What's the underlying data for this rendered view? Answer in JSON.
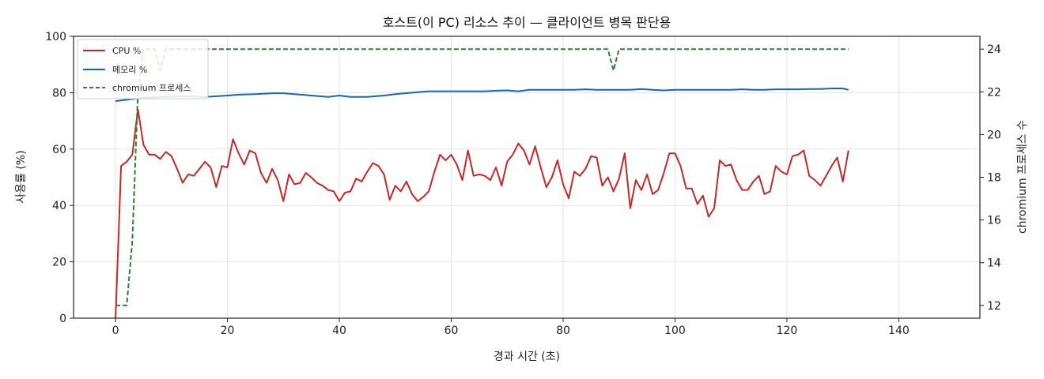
{
  "chart_data": {
    "type": "line",
    "title": "호스트(이 PC) 리소스 추이 — 클라이언트 병목 판단용",
    "xlabel": "경과 시간 (초)",
    "ylabel": "사용률 (%)",
    "y2label": "chromium 프로세스 수",
    "xlim": [
      -7.5,
      154.5
    ],
    "ylim": [
      0,
      100
    ],
    "y2lim": [
      11.4,
      24.6
    ],
    "xticks": [
      0,
      20,
      40,
      60,
      80,
      100,
      120,
      140
    ],
    "yticks": [
      0,
      20,
      40,
      60,
      80,
      100
    ],
    "y2ticks": [
      12,
      14,
      16,
      18,
      20,
      22,
      24
    ],
    "grid": true,
    "legend_position": "top-left",
    "colors": {
      "cpu": "#c62828",
      "memory": "#1565c0",
      "chromium": "#2e7d32"
    },
    "series": [
      {
        "name": "CPU %",
        "axis": "left",
        "style": "solid",
        "points": [
          [
            0,
            0
          ],
          [
            1,
            54
          ],
          [
            2,
            55.5
          ],
          [
            3,
            58
          ],
          [
            4,
            74
          ],
          [
            5,
            61.5
          ],
          [
            6,
            58
          ],
          [
            7,
            58
          ],
          [
            8,
            56.5
          ],
          [
            9,
            59
          ],
          [
            10,
            57.5
          ],
          [
            11,
            53
          ],
          [
            12,
            48
          ],
          [
            13,
            51
          ],
          [
            14,
            50.5
          ],
          [
            15,
            53
          ],
          [
            16,
            55.5
          ],
          [
            17,
            53.5
          ],
          [
            18,
            46.5
          ],
          [
            19,
            54
          ],
          [
            20,
            53.5
          ],
          [
            21,
            63.5
          ],
          [
            22,
            58.5
          ],
          [
            23,
            54.5
          ],
          [
            24,
            59.5
          ],
          [
            25,
            58.5
          ],
          [
            26,
            51.5
          ],
          [
            27,
            48
          ],
          [
            28,
            53
          ],
          [
            29,
            49
          ],
          [
            30,
            41.5
          ],
          [
            31,
            51
          ],
          [
            32,
            47.5
          ],
          [
            33,
            48
          ],
          [
            34,
            51.5
          ],
          [
            35,
            50
          ],
          [
            36,
            48
          ],
          [
            37,
            47
          ],
          [
            38,
            45.5
          ],
          [
            39,
            45
          ],
          [
            40,
            41.5
          ],
          [
            41,
            44.5
          ],
          [
            42,
            45
          ],
          [
            43,
            49.5
          ],
          [
            44,
            48.5
          ],
          [
            45,
            52
          ],
          [
            46,
            55
          ],
          [
            47,
            54
          ],
          [
            48,
            51
          ],
          [
            49,
            42
          ],
          [
            50,
            47
          ],
          [
            51,
            45
          ],
          [
            52,
            48.5
          ],
          [
            53,
            44
          ],
          [
            54,
            41.5
          ],
          [
            55,
            43
          ],
          [
            56,
            45
          ],
          [
            57,
            52
          ],
          [
            58,
            58
          ],
          [
            59,
            56
          ],
          [
            60,
            58
          ],
          [
            61,
            54.5
          ],
          [
            62,
            49
          ],
          [
            63,
            59.5
          ],
          [
            64,
            50.5
          ],
          [
            65,
            51
          ],
          [
            66,
            50.5
          ],
          [
            67,
            49
          ],
          [
            68,
            53.5
          ],
          [
            69,
            47
          ],
          [
            70,
            55.5
          ],
          [
            71,
            58
          ],
          [
            72,
            62
          ],
          [
            73,
            59.5
          ],
          [
            74,
            54.5
          ],
          [
            75,
            61
          ],
          [
            76,
            53.5
          ],
          [
            77,
            46.5
          ],
          [
            78,
            50
          ],
          [
            79,
            56
          ],
          [
            80,
            47.5
          ],
          [
            81,
            42.5
          ],
          [
            82,
            52
          ],
          [
            83,
            50.5
          ],
          [
            84,
            53
          ],
          [
            85,
            57.5
          ],
          [
            86,
            57
          ],
          [
            87,
            47
          ],
          [
            88,
            50
          ],
          [
            89,
            45
          ],
          [
            90,
            49.5
          ],
          [
            91,
            58.5
          ],
          [
            92,
            39
          ],
          [
            93,
            49
          ],
          [
            94,
            45.5
          ],
          [
            95,
            51
          ],
          [
            96,
            44
          ],
          [
            97,
            45.5
          ],
          [
            98,
            51.5
          ],
          [
            99,
            58.5
          ],
          [
            100,
            58.5
          ],
          [
            101,
            54
          ],
          [
            102,
            46
          ],
          [
            103,
            46
          ],
          [
            104,
            40.5
          ],
          [
            105,
            43.5
          ],
          [
            106,
            36
          ],
          [
            107,
            39
          ],
          [
            108,
            56
          ],
          [
            109,
            54
          ],
          [
            110,
            54.5
          ],
          [
            111,
            49
          ],
          [
            112,
            45.5
          ],
          [
            113,
            45.5
          ],
          [
            114,
            48.5
          ],
          [
            115,
            50.5
          ],
          [
            116,
            44
          ],
          [
            117,
            45
          ],
          [
            118,
            54
          ],
          [
            119,
            52
          ],
          [
            120,
            51
          ],
          [
            121,
            57.5
          ],
          [
            122,
            58
          ],
          [
            123,
            59.5
          ],
          [
            124,
            50.5
          ],
          [
            125,
            49
          ],
          [
            126,
            47
          ],
          [
            127,
            50.5
          ],
          [
            128,
            54
          ],
          [
            129,
            57
          ],
          [
            130,
            48.5
          ],
          [
            131,
            59.5
          ]
        ]
      },
      {
        "name": "메모리 %",
        "axis": "left",
        "style": "solid",
        "points": [
          [
            0,
            77
          ],
          [
            4,
            78
          ],
          [
            8,
            78.5
          ],
          [
            12,
            78.8
          ],
          [
            16,
            78.5
          ],
          [
            20,
            79
          ],
          [
            22,
            79.3
          ],
          [
            25,
            79.5
          ],
          [
            28,
            79.8
          ],
          [
            30,
            79.8
          ],
          [
            32,
            79.5
          ],
          [
            35,
            79
          ],
          [
            38,
            78.5
          ],
          [
            40,
            79
          ],
          [
            42,
            78.5
          ],
          [
            45,
            78.5
          ],
          [
            48,
            79
          ],
          [
            50,
            79.5
          ],
          [
            53,
            80
          ],
          [
            56,
            80.5
          ],
          [
            58,
            80.5
          ],
          [
            60,
            80.5
          ],
          [
            62,
            80.5
          ],
          [
            64,
            80.5
          ],
          [
            66,
            80.5
          ],
          [
            68,
            80.7
          ],
          [
            70,
            80.8
          ],
          [
            72,
            80.5
          ],
          [
            74,
            81
          ],
          [
            76,
            81
          ],
          [
            78,
            81
          ],
          [
            80,
            81
          ],
          [
            82,
            81
          ],
          [
            84,
            81.2
          ],
          [
            86,
            81
          ],
          [
            88,
            81
          ],
          [
            90,
            81
          ],
          [
            92,
            81
          ],
          [
            94,
            81.3
          ],
          [
            96,
            81
          ],
          [
            98,
            80.8
          ],
          [
            100,
            81
          ],
          [
            102,
            81
          ],
          [
            104,
            81
          ],
          [
            106,
            81
          ],
          [
            108,
            81
          ],
          [
            110,
            81
          ],
          [
            112,
            81.2
          ],
          [
            114,
            81
          ],
          [
            116,
            81
          ],
          [
            118,
            81.2
          ],
          [
            120,
            81.2
          ],
          [
            122,
            81.2
          ],
          [
            124,
            81.3
          ],
          [
            126,
            81.3
          ],
          [
            128,
            81.5
          ],
          [
            130,
            81.5
          ],
          [
            131,
            81
          ]
        ]
      },
      {
        "name": "chromium 프로세스",
        "axis": "right",
        "style": "dashed",
        "points": [
          [
            0,
            12
          ],
          [
            2,
            12
          ],
          [
            3,
            15
          ],
          [
            4,
            22
          ],
          [
            5,
            24
          ],
          [
            6,
            24
          ],
          [
            7,
            24
          ],
          [
            8,
            23
          ],
          [
            9,
            24
          ],
          [
            10,
            24
          ],
          [
            88,
            24
          ],
          [
            89,
            23
          ],
          [
            90,
            24
          ],
          [
            131,
            24
          ]
        ]
      }
    ]
  }
}
